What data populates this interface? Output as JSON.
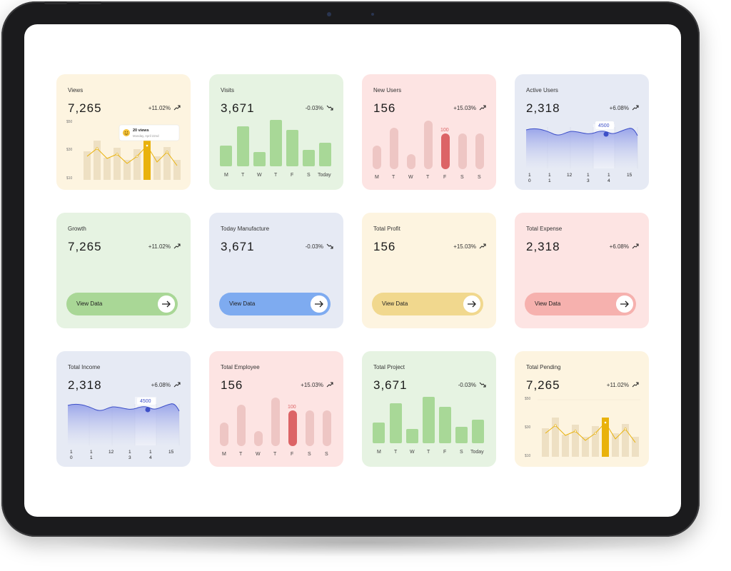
{
  "colors": {
    "yellow_bg": "#fdf4e0",
    "green_bg": "#e6f3e2",
    "pink_bg": "#fde4e3",
    "blue_bg": "#e6eaf4",
    "gold_bar": "#e9b20c",
    "green_bar": "#a8d897",
    "pink_bar": "#eec6c4",
    "red_bar": "#dc6466",
    "blue_line": "#3e50c8",
    "green_pill": "#a9d796",
    "blue_pill": "#7eabf0",
    "gold_pill": "#f1d88e",
    "pink_pill": "#f6b1ae"
  },
  "cards": {
    "views": {
      "label": "Views",
      "value": "7,265",
      "change": "+11.02%",
      "y_labels": [
        "$50",
        "$30",
        "$10"
      ],
      "tooltip": {
        "title": "20 views",
        "subtitle": "Monday, April 22nd"
      }
    },
    "visits": {
      "label": "Visits",
      "value": "3,671",
      "change": "-0.03%",
      "days": [
        "M",
        "T",
        "W",
        "T",
        "F",
        "S",
        "Today"
      ]
    },
    "new_users": {
      "label": "New Users",
      "value": "156",
      "change": "+15.03%",
      "days": [
        "M",
        "T",
        "W",
        "T",
        "F",
        "S",
        "S"
      ],
      "highlight": "100"
    },
    "active_users": {
      "label": "Active Users",
      "value": "2,318",
      "change": "+6.08%",
      "tooltip": "4500",
      "x_top": [
        "1",
        "1",
        "12",
        "1",
        "1",
        "15"
      ],
      "x_bottom": [
        "0",
        "1",
        "",
        "3",
        "4",
        ""
      ]
    },
    "growth": {
      "label": "Growth",
      "value": "7,265",
      "change": "+11.02%",
      "button": "View Data"
    },
    "today_manufacture": {
      "label": "Today Manufacture",
      "value": "3,671",
      "change": "-0.03%",
      "button": "View Data"
    },
    "total_profit": {
      "label": "Total Profit",
      "value": "156",
      "change": "+15.03%",
      "button": "View Data"
    },
    "total_expense": {
      "label": "Total Expense",
      "value": "2,318",
      "change": "+6.08%",
      "button": "View Data"
    },
    "total_income": {
      "label": "Total Income",
      "value": "2,318",
      "change": "+6.08%",
      "tooltip": "4500",
      "x_top": [
        "1",
        "1",
        "12",
        "1",
        "1",
        "15"
      ],
      "x_bottom": [
        "0",
        "1",
        "",
        "3",
        "4",
        ""
      ]
    },
    "total_employee": {
      "label": "Total Employee",
      "value": "156",
      "change": "+15.03%",
      "days": [
        "M",
        "T",
        "W",
        "T",
        "F",
        "S",
        "S"
      ],
      "highlight": "100"
    },
    "total_project": {
      "label": "Total Project",
      "value": "3,671",
      "change": "-0.03%",
      "days": [
        "M",
        "T",
        "W",
        "T",
        "F",
        "S",
        "Today"
      ]
    },
    "total_pending": {
      "label": "Total Pending",
      "value": "7,265",
      "change": "+11.02%",
      "y_labels": [
        "$50",
        "$30",
        "$10"
      ]
    }
  }
}
